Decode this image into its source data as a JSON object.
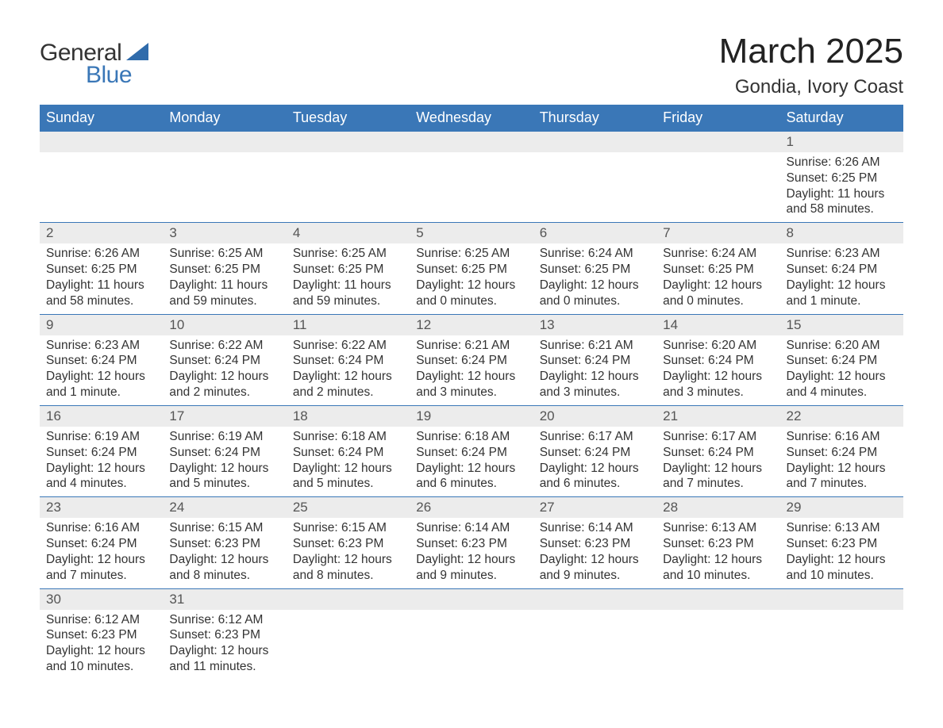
{
  "brand": {
    "word1": "General",
    "word2": "Blue",
    "shape_color": "#2f6bab"
  },
  "title": "March 2025",
  "location": "Gondia, Ivory Coast",
  "colors": {
    "header_bg": "#3a77b7",
    "header_text": "#ffffff",
    "daynum_bg": "#ececec",
    "daynum_text": "#555555",
    "body_text": "#333333",
    "row_border": "#3a77b7",
    "page_bg": "#ffffff"
  },
  "day_headers": [
    "Sunday",
    "Monday",
    "Tuesday",
    "Wednesday",
    "Thursday",
    "Friday",
    "Saturday"
  ],
  "labels": {
    "sunrise": "Sunrise:",
    "sunset": "Sunset:",
    "daylight": "Daylight:"
  },
  "weeks": [
    [
      null,
      null,
      null,
      null,
      null,
      null,
      {
        "n": "1",
        "sunrise": "6:26 AM",
        "sunset": "6:25 PM",
        "daylight": "11 hours and 58 minutes."
      }
    ],
    [
      {
        "n": "2",
        "sunrise": "6:26 AM",
        "sunset": "6:25 PM",
        "daylight": "11 hours and 58 minutes."
      },
      {
        "n": "3",
        "sunrise": "6:25 AM",
        "sunset": "6:25 PM",
        "daylight": "11 hours and 59 minutes."
      },
      {
        "n": "4",
        "sunrise": "6:25 AM",
        "sunset": "6:25 PM",
        "daylight": "11 hours and 59 minutes."
      },
      {
        "n": "5",
        "sunrise": "6:25 AM",
        "sunset": "6:25 PM",
        "daylight": "12 hours and 0 minutes."
      },
      {
        "n": "6",
        "sunrise": "6:24 AM",
        "sunset": "6:25 PM",
        "daylight": "12 hours and 0 minutes."
      },
      {
        "n": "7",
        "sunrise": "6:24 AM",
        "sunset": "6:25 PM",
        "daylight": "12 hours and 0 minutes."
      },
      {
        "n": "8",
        "sunrise": "6:23 AM",
        "sunset": "6:24 PM",
        "daylight": "12 hours and 1 minute."
      }
    ],
    [
      {
        "n": "9",
        "sunrise": "6:23 AM",
        "sunset": "6:24 PM",
        "daylight": "12 hours and 1 minute."
      },
      {
        "n": "10",
        "sunrise": "6:22 AM",
        "sunset": "6:24 PM",
        "daylight": "12 hours and 2 minutes."
      },
      {
        "n": "11",
        "sunrise": "6:22 AM",
        "sunset": "6:24 PM",
        "daylight": "12 hours and 2 minutes."
      },
      {
        "n": "12",
        "sunrise": "6:21 AM",
        "sunset": "6:24 PM",
        "daylight": "12 hours and 3 minutes."
      },
      {
        "n": "13",
        "sunrise": "6:21 AM",
        "sunset": "6:24 PM",
        "daylight": "12 hours and 3 minutes."
      },
      {
        "n": "14",
        "sunrise": "6:20 AM",
        "sunset": "6:24 PM",
        "daylight": "12 hours and 3 minutes."
      },
      {
        "n": "15",
        "sunrise": "6:20 AM",
        "sunset": "6:24 PM",
        "daylight": "12 hours and 4 minutes."
      }
    ],
    [
      {
        "n": "16",
        "sunrise": "6:19 AM",
        "sunset": "6:24 PM",
        "daylight": "12 hours and 4 minutes."
      },
      {
        "n": "17",
        "sunrise": "6:19 AM",
        "sunset": "6:24 PM",
        "daylight": "12 hours and 5 minutes."
      },
      {
        "n": "18",
        "sunrise": "6:18 AM",
        "sunset": "6:24 PM",
        "daylight": "12 hours and 5 minutes."
      },
      {
        "n": "19",
        "sunrise": "6:18 AM",
        "sunset": "6:24 PM",
        "daylight": "12 hours and 6 minutes."
      },
      {
        "n": "20",
        "sunrise": "6:17 AM",
        "sunset": "6:24 PM",
        "daylight": "12 hours and 6 minutes."
      },
      {
        "n": "21",
        "sunrise": "6:17 AM",
        "sunset": "6:24 PM",
        "daylight": "12 hours and 7 minutes."
      },
      {
        "n": "22",
        "sunrise": "6:16 AM",
        "sunset": "6:24 PM",
        "daylight": "12 hours and 7 minutes."
      }
    ],
    [
      {
        "n": "23",
        "sunrise": "6:16 AM",
        "sunset": "6:24 PM",
        "daylight": "12 hours and 7 minutes."
      },
      {
        "n": "24",
        "sunrise": "6:15 AM",
        "sunset": "6:23 PM",
        "daylight": "12 hours and 8 minutes."
      },
      {
        "n": "25",
        "sunrise": "6:15 AM",
        "sunset": "6:23 PM",
        "daylight": "12 hours and 8 minutes."
      },
      {
        "n": "26",
        "sunrise": "6:14 AM",
        "sunset": "6:23 PM",
        "daylight": "12 hours and 9 minutes."
      },
      {
        "n": "27",
        "sunrise": "6:14 AM",
        "sunset": "6:23 PM",
        "daylight": "12 hours and 9 minutes."
      },
      {
        "n": "28",
        "sunrise": "6:13 AM",
        "sunset": "6:23 PM",
        "daylight": "12 hours and 10 minutes."
      },
      {
        "n": "29",
        "sunrise": "6:13 AM",
        "sunset": "6:23 PM",
        "daylight": "12 hours and 10 minutes."
      }
    ],
    [
      {
        "n": "30",
        "sunrise": "6:12 AM",
        "sunset": "6:23 PM",
        "daylight": "12 hours and 10 minutes."
      },
      {
        "n": "31",
        "sunrise": "6:12 AM",
        "sunset": "6:23 PM",
        "daylight": "12 hours and 11 minutes."
      },
      null,
      null,
      null,
      null,
      null
    ]
  ]
}
